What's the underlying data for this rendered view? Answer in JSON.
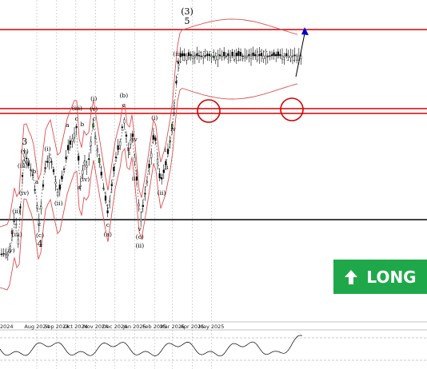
{
  "chart_data": {
    "type": "candlestick",
    "x_ticks": [
      "Aug 2024",
      "Sep 2024",
      "Oct 2024",
      "Nov 2024",
      "Dec 2024",
      "Jan 2025",
      "Feb 2025",
      "Mar 2025",
      "Apr 2025",
      "May 2025"
    ],
    "first_tick_partial": "2024",
    "wave_labels": [
      {
        "t": "(iv)",
        "d": "2024-06-20",
        "row": "p316"
      },
      {
        "t": "(ii)",
        "d": "2024-06-30",
        "row": "p267"
      },
      {
        "t": "(iii)",
        "d": "2024-07-01",
        "row": "p296"
      },
      {
        "t": "(iii)",
        "d": "2024-07-10",
        "row": "p210"
      },
      {
        "t": "(iv)",
        "d": "2024-07-12",
        "row": "p244"
      },
      {
        "t": "3",
        "d": "2024-07-13",
        "row": "p181"
      },
      {
        "t": "(v)",
        "d": "2024-07-13",
        "row": "p192"
      },
      {
        "t": "(v)",
        "d": "2024-07-15",
        "row": "p205"
      },
      {
        "t": "b",
        "d": "2024-07-28",
        "row": "p217"
      },
      {
        "t": "a",
        "d": "2024-08-01",
        "row": "p230"
      },
      {
        "t": "c",
        "d": "2024-08-05",
        "row": "p283"
      },
      {
        "t": "(c)",
        "d": "2024-08-06",
        "row": "p297"
      },
      {
        "t": "4",
        "d": "2024-08-06",
        "row": "p309"
      },
      {
        "t": "(i)",
        "d": "2024-08-18",
        "row": "p189"
      },
      {
        "t": "(ii)",
        "d": "2024-09-04",
        "row": "p257"
      },
      {
        "t": "a",
        "d": "2024-09-18",
        "row": "p159"
      },
      {
        "t": "c",
        "d": "2024-10-02",
        "row": "p151"
      },
      {
        "t": "(iii)",
        "d": "2024-10-03",
        "row": "p138"
      },
      {
        "t": "b",
        "d": "2024-10-11",
        "row": "p158"
      },
      {
        "t": "a",
        "d": "2024-10-06",
        "row": "p237"
      },
      {
        "t": "(iv)",
        "d": "2024-10-15",
        "row": "p227"
      },
      {
        "t": "(i)",
        "d": "2024-10-29",
        "row": "p126"
      },
      {
        "t": "c",
        "d": "2024-10-30",
        "row": "p151"
      },
      {
        "t": "(v)",
        "d": "2024-10-29",
        "row": "p139"
      },
      {
        "t": "c",
        "d": "2024-11-20",
        "row": "p284"
      },
      {
        "t": "(a)",
        "d": "2024-11-20",
        "row": "p296"
      },
      {
        "t": "(b)",
        "d": "2024-12-15",
        "row": "p122"
      },
      {
        "t": "c",
        "d": "2024-12-15",
        "row": "p134"
      },
      {
        "t": "i",
        "d": "2024-12-24",
        "row": "p194"
      },
      {
        "t": "iv",
        "d": "2025-01-01",
        "row": "p177"
      },
      {
        "t": "iii",
        "d": "2025-01-01",
        "row": "p226"
      },
      {
        "t": "v",
        "d": "2025-01-09",
        "row": "p289"
      },
      {
        "t": "(c)",
        "d": "2025-01-09",
        "row": "p299"
      },
      {
        "t": "(ii)",
        "d": "2025-01-09",
        "row": "p310"
      },
      {
        "t": "(i)",
        "d": "2025-02-01",
        "row": "p150"
      },
      {
        "t": "i",
        "d": "2025-02-18",
        "row": "p190"
      },
      {
        "t": "ii",
        "d": "2025-02-20",
        "row": "p212"
      },
      {
        "t": "(ii)",
        "d": "2025-02-12",
        "row": "p244"
      },
      {
        "t": "iv",
        "d": "2025-03-02",
        "row": "p164"
      },
      {
        "t": "v",
        "d": "2025-03-10",
        "row": "p80"
      },
      {
        "t": "(iii)",
        "d": "2025-03-10",
        "row": "p70"
      },
      {
        "t": "(3)",
        "d": "2025-03-24",
        "row": "p18"
      },
      {
        "t": "5",
        "d": "2025-03-24",
        "row": "p30"
      }
    ],
    "candles_note": "Daily OHLC bars; values read in chart price units (unlabelled axis)",
    "indicator": "oscillator subpanel",
    "signal": "LONG",
    "colors": {
      "resistance": "#d40000",
      "support": "#000000",
      "envelope": "#e05050",
      "ma": "#555555",
      "badge": "#1fa84a",
      "arrow": "#0000cc"
    }
  }
}
